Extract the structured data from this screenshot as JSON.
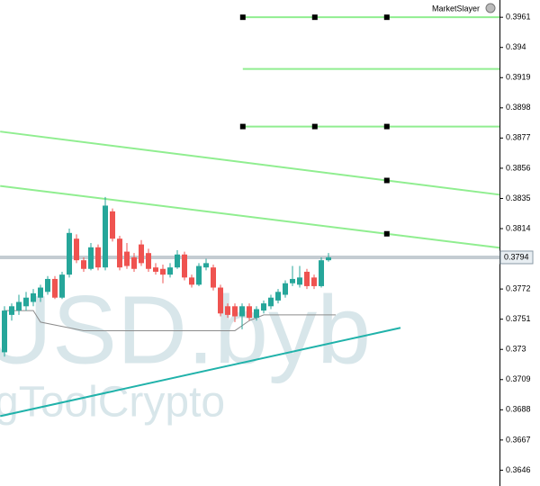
{
  "chart_data": {
    "type": "candlestick",
    "label": "MarketSlayer",
    "watermark": [
      "USD.byb",
      "gToolCrypto"
    ],
    "open": [
      0.3728,
      0.3754,
      0.3757,
      0.376,
      0.3763,
      0.3766,
      0.377,
      0.3779,
      0.3766,
      0.3782,
      0.3807,
      0.3792,
      0.3786,
      0.3801,
      0.3787,
      0.3826,
      0.3807,
      0.3798,
      0.3794,
      0.3803,
      0.3797,
      0.3787,
      0.3786,
      0.3782,
      0.3787,
      0.3796,
      0.378,
      0.3775,
      0.3787,
      0.3787,
      0.3773,
      0.376,
      0.376,
      0.3753,
      0.376,
      0.3752,
      0.3757,
      0.376,
      0.3764,
      0.3768,
      0.3776,
      0.3775,
      0.3784,
      0.378,
      0.3774,
      0.3792
    ],
    "high": [
      0.376,
      0.3762,
      0.3768,
      0.377,
      0.3772,
      0.3775,
      0.3781,
      0.3781,
      0.3784,
      0.3814,
      0.381,
      0.3794,
      0.3804,
      0.3803,
      0.3836,
      0.3828,
      0.3809,
      0.3804,
      0.3797,
      0.3806,
      0.38,
      0.379,
      0.3789,
      0.379,
      0.3799,
      0.3798,
      0.3782,
      0.379,
      0.3793,
      0.3789,
      0.3775,
      0.3762,
      0.3762,
      0.3762,
      0.3762,
      0.376,
      0.3764,
      0.3768,
      0.3772,
      0.3778,
      0.3788,
      0.3788,
      0.3786,
      0.3782,
      0.3794,
      0.3797
    ],
    "low": [
      0.3725,
      0.375,
      0.3754,
      0.3757,
      0.376,
      0.3763,
      0.3768,
      0.3765,
      0.3765,
      0.378,
      0.379,
      0.3784,
      0.3785,
      0.3785,
      0.3785,
      0.3805,
      0.3785,
      0.3786,
      0.3784,
      0.3788,
      0.3784,
      0.3782,
      0.3776,
      0.378,
      0.3786,
      0.3778,
      0.3773,
      0.3774,
      0.3785,
      0.3771,
      0.3753,
      0.3752,
      0.3749,
      0.3744,
      0.375,
      0.375,
      0.3755,
      0.3758,
      0.3762,
      0.3766,
      0.3774,
      0.3773,
      0.3772,
      0.3772,
      0.3773,
      0.3791
    ],
    "close": [
      0.3757,
      0.376,
      0.3763,
      0.3766,
      0.3769,
      0.3773,
      0.3779,
      0.3766,
      0.3782,
      0.3811,
      0.3792,
      0.3786,
      0.3801,
      0.3787,
      0.383,
      0.3807,
      0.3787,
      0.3788,
      0.3786,
      0.379,
      0.3786,
      0.3784,
      0.3782,
      0.3787,
      0.3796,
      0.378,
      0.3775,
      0.3788,
      0.379,
      0.3773,
      0.3755,
      0.3754,
      0.3753,
      0.376,
      0.3752,
      0.3758,
      0.3762,
      0.3766,
      0.377,
      0.3776,
      0.3779,
      0.378,
      0.3774,
      0.3774,
      0.3792,
      0.3794
    ],
    "up_color": "#26a69a",
    "down_color": "#ef5350",
    "indicator": {
      "color": "#8c8c8c",
      "x": [
        0,
        4,
        5,
        11,
        32,
        34,
        36,
        46
      ],
      "values": [
        0.3757,
        0.3757,
        0.3749,
        0.3743,
        0.3743,
        0.375,
        0.3754,
        0.3754
      ]
    },
    "levels": [
      {
        "value": 0.3961,
        "x": [
          33.1,
          68.75
        ]
      },
      {
        "value": 0.3925,
        "x": [
          33.1,
          68.75
        ]
      },
      {
        "value": 0.3885,
        "x": [
          33.1,
          68.75
        ]
      }
    ],
    "trendlines": [
      {
        "x": [
          -0.6,
          68.75
        ],
        "values": [
          0.38815,
          0.38376
        ],
        "color": "#90ee90"
      },
      {
        "x": [
          -0.6,
          68.75
        ],
        "values": [
          0.38437,
          0.38007
        ],
        "color": "#90ee90"
      },
      {
        "x": [
          -0.6,
          55
        ],
        "values": [
          0.36836,
          0.3745
        ],
        "color": "#20b2aa"
      }
    ],
    "level_color": "#90ee90",
    "current_price": 0.3794,
    "current_price_label": "0.3794",
    "ylim": [
      0.3635,
      0.3973
    ],
    "yticks": [
      0.3961,
      0.394,
      0.3919,
      0.3898,
      0.3877,
      0.3856,
      0.3835,
      0.3814,
      0.3772,
      0.3751,
      0.373,
      0.3709,
      0.3688,
      0.3667,
      0.3646
    ]
  }
}
